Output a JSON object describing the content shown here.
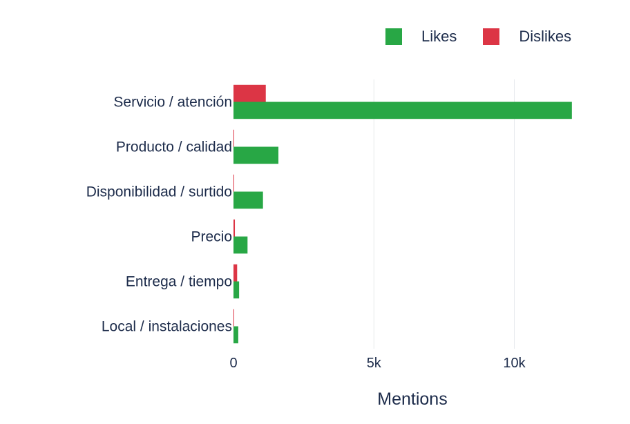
{
  "chart_data": {
    "type": "bar",
    "orientation": "horizontal",
    "categories": [
      "Servicio / atención",
      "Producto / calidad",
      "Disponibilidad / surtido",
      "Precio",
      "Entrega / tiempo",
      "Local / instalaciones"
    ],
    "series": [
      {
        "name": "Likes",
        "color": "#28a745",
        "values": [
          12050,
          1600,
          1050,
          500,
          200,
          170
        ]
      },
      {
        "name": "Dislikes",
        "color": "#dc3545",
        "values": [
          1150,
          15,
          20,
          50,
          130,
          20
        ]
      }
    ],
    "xlabel": "Mentions",
    "xlim": [
      0,
      12300
    ],
    "xticks": [
      0,
      5000,
      10000
    ],
    "xtick_labels": [
      "0",
      "5k",
      "10k"
    ],
    "grid": "x-only",
    "legend_position": "top-right"
  }
}
